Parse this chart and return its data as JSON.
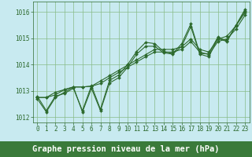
{
  "background_color": "#c8eaf0",
  "grid_color": "#88bb88",
  "line_color": "#2d6a2d",
  "xlabel_bg_color": "#3a7a3a",
  "xlabel_text_color": "#ffffff",
  "xlabel": "Graphe pression niveau de la mer (hPa)",
  "ylim": [
    1011.8,
    1016.4
  ],
  "xlim": [
    -0.5,
    23.5
  ],
  "yticks": [
    1012,
    1013,
    1014,
    1015,
    1016
  ],
  "xticks": [
    0,
    1,
    2,
    3,
    4,
    5,
    6,
    7,
    8,
    9,
    10,
    11,
    12,
    13,
    14,
    15,
    16,
    17,
    18,
    19,
    20,
    21,
    22,
    23
  ],
  "series": [
    [
      1012.8,
      1012.25,
      1012.8,
      1012.9,
      1013.1,
      1012.25,
      1013.2,
      1012.3,
      1013.4,
      1013.6,
      1014.0,
      1014.5,
      1014.85,
      1014.8,
      1014.5,
      1014.42,
      1014.8,
      1015.55,
      1014.42,
      1014.42,
      1015.05,
      1014.9,
      1015.5,
      1016.1
    ],
    [
      1012.75,
      1012.75,
      1012.95,
      1013.05,
      1013.15,
      1013.15,
      1013.18,
      1013.28,
      1013.5,
      1013.7,
      1013.9,
      1014.1,
      1014.3,
      1014.48,
      1014.48,
      1014.48,
      1014.58,
      1014.88,
      1014.48,
      1014.38,
      1014.88,
      1014.98,
      1015.35,
      1015.88
    ],
    [
      1012.75,
      1012.75,
      1012.85,
      1013.05,
      1013.15,
      1013.15,
      1013.18,
      1013.38,
      1013.58,
      1013.78,
      1013.98,
      1014.18,
      1014.38,
      1014.58,
      1014.58,
      1014.58,
      1014.68,
      1014.98,
      1014.58,
      1014.48,
      1014.98,
      1015.08,
      1015.48,
      1015.98
    ],
    [
      1012.7,
      1012.2,
      1012.75,
      1012.95,
      1013.15,
      1012.2,
      1013.1,
      1012.25,
      1013.3,
      1013.5,
      1013.9,
      1014.4,
      1014.7,
      1014.7,
      1014.45,
      1014.4,
      1014.7,
      1015.45,
      1014.4,
      1014.3,
      1015.0,
      1014.88,
      1015.48,
      1016.05
    ]
  ],
  "marker": "D",
  "markersize": 2.0,
  "linewidth": 0.8,
  "tick_fontsize": 5.5,
  "label_fontsize": 7.5,
  "label_fontweight": "bold"
}
